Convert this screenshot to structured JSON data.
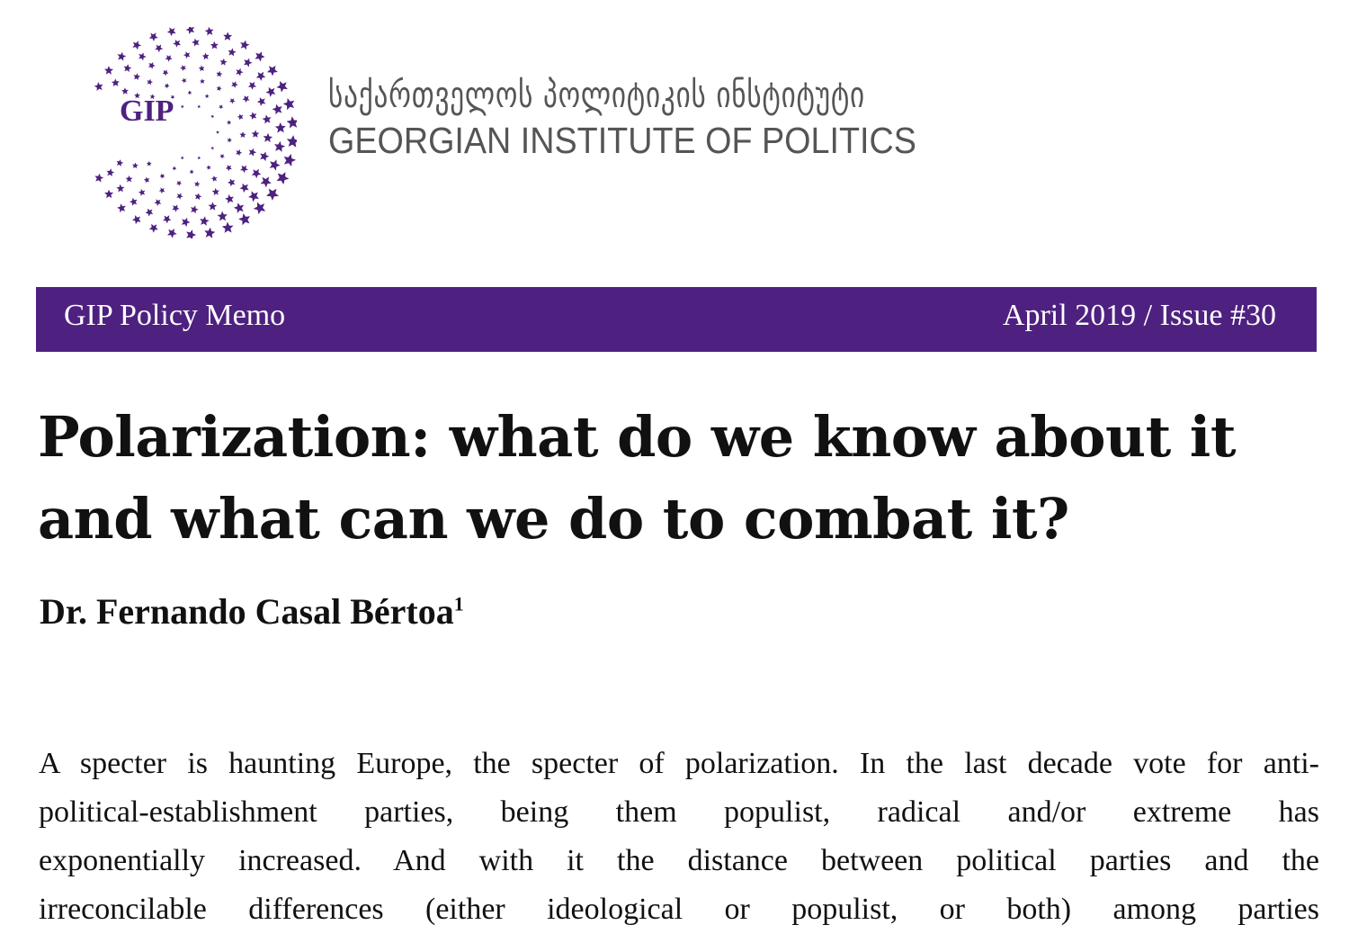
{
  "header": {
    "logo_text": "GIP",
    "org_name_georgian": "საქართველოს პოლიტიკის ინსტიტუტი",
    "org_name_english": "GEORGIAN INSTITUTE OF POLITICS",
    "brand_color": "#4e2180"
  },
  "banner": {
    "series": "GIP Policy Memo",
    "issue": "April 2019 / Issue #30"
  },
  "title": "Polarization: what do we know about it and what can we do to combat it?",
  "author": {
    "name": "Dr. Fernando Casal Bértoa",
    "footnote": "1"
  },
  "body": {
    "lines": [
      "A specter is haunting Europe, the specter of polarization. In the last decade vote for anti-",
      "political-establishment parties, being them populist, radical and/or extreme has",
      "exponentially increased. And with it the distance between political parties and the",
      "irreconcilable differences (either ideological or populist, or both) among parties"
    ]
  }
}
